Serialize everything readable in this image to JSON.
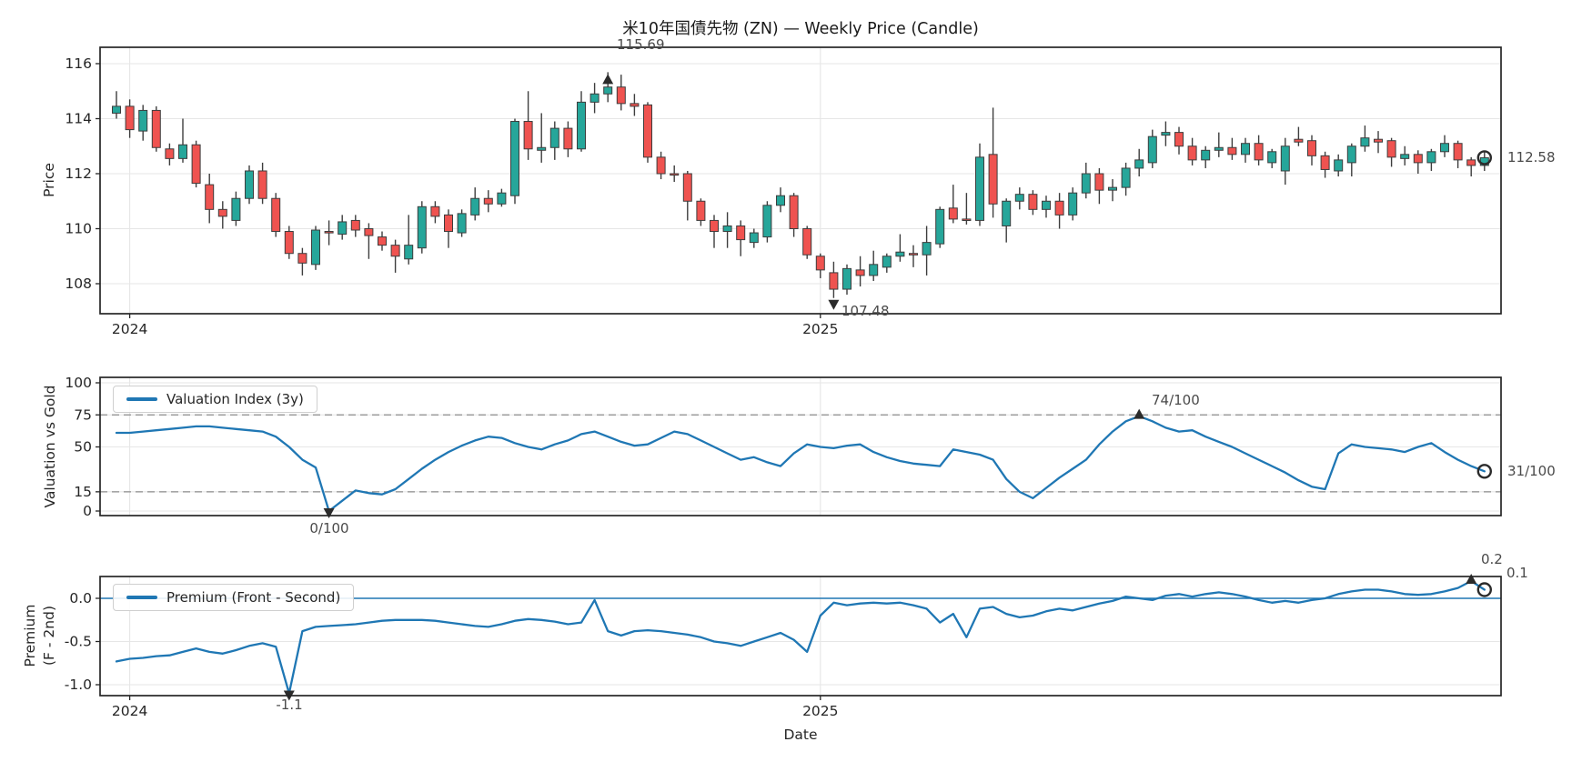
{
  "title": "米10年国債先物 (ZN) — Weekly Price (Candle)",
  "xlabel": "Date",
  "xticks": [
    {
      "label": "2024",
      "index": 1
    },
    {
      "label": "2025",
      "index": 53
    }
  ],
  "colors": {
    "up": "#26a69a",
    "down": "#ef5350",
    "candle_edge": "#3d3d3d",
    "line": "#1f77b4",
    "zero_line": "#1f77b4",
    "dashed": "#8c8c8c",
    "grid": "#e6e6e6",
    "spine": "#262626",
    "tick_text": "#262626",
    "annotation_text": "#4a4a4a",
    "marker": "#2b2b2b"
  },
  "chart_data": [
    {
      "type": "candlestick",
      "title": "米10年国債先物 (ZN) — Weekly Price (Candle)",
      "ylabel": "Price",
      "x_unit": "week",
      "xlabel_ticks": [
        "2024",
        "2025"
      ],
      "ylim": [
        106.3,
        116.6
      ],
      "yticks": [
        {
          "label": "108",
          "value": 108
        },
        {
          "label": "110",
          "value": 110
        },
        {
          "label": "112",
          "value": 112
        },
        {
          "label": "114",
          "value": 114
        },
        {
          "label": "116",
          "value": 116
        }
      ],
      "annotations": {
        "high": {
          "label": "115.69",
          "index": 37,
          "value": 115.69,
          "marker": "triangle-up"
        },
        "low": {
          "label": "107.48",
          "index": 54,
          "value": 107.48,
          "marker": "triangle-down"
        },
        "last": {
          "label": "112.58",
          "index": 103,
          "value": 112.58,
          "marker": "circle"
        }
      },
      "ohlc": [
        [
          114.2,
          115.0,
          114.0,
          114.45
        ],
        [
          114.45,
          114.7,
          113.3,
          113.6
        ],
        [
          113.55,
          114.5,
          113.2,
          114.3
        ],
        [
          114.3,
          114.45,
          112.8,
          112.95
        ],
        [
          112.9,
          113.1,
          112.3,
          112.55
        ],
        [
          112.55,
          114.0,
          112.4,
          113.05
        ],
        [
          113.05,
          113.2,
          111.5,
          111.65
        ],
        [
          111.6,
          112.0,
          110.2,
          110.7
        ],
        [
          110.7,
          111.0,
          110.0,
          110.45
        ],
        [
          110.3,
          111.35,
          110.1,
          111.1
        ],
        [
          111.1,
          112.3,
          110.9,
          112.1
        ],
        [
          112.1,
          112.4,
          110.9,
          111.1
        ],
        [
          111.1,
          111.3,
          109.7,
          109.9
        ],
        [
          109.9,
          110.1,
          108.9,
          109.1
        ],
        [
          109.1,
          109.3,
          108.3,
          108.75
        ],
        [
          108.7,
          110.1,
          108.5,
          109.95
        ],
        [
          109.9,
          110.3,
          109.4,
          109.85
        ],
        [
          109.8,
          110.5,
          109.6,
          110.25
        ],
        [
          110.3,
          110.5,
          109.7,
          109.95
        ],
        [
          110.0,
          110.2,
          108.9,
          109.75
        ],
        [
          109.7,
          109.9,
          109.2,
          109.4
        ],
        [
          109.4,
          109.6,
          108.4,
          109.0
        ],
        [
          108.9,
          110.5,
          108.7,
          109.4
        ],
        [
          109.3,
          111.0,
          109.1,
          110.8
        ],
        [
          110.8,
          111.0,
          110.2,
          110.45
        ],
        [
          110.5,
          110.7,
          109.3,
          109.9
        ],
        [
          109.85,
          110.7,
          109.7,
          110.55
        ],
        [
          110.5,
          111.5,
          110.3,
          111.1
        ],
        [
          111.1,
          111.4,
          110.6,
          110.9
        ],
        [
          110.9,
          111.45,
          110.8,
          111.3
        ],
        [
          111.2,
          114.0,
          110.9,
          113.9
        ],
        [
          113.9,
          115.0,
          112.5,
          112.9
        ],
        [
          112.85,
          114.2,
          112.4,
          112.95
        ],
        [
          112.95,
          113.9,
          112.5,
          113.65
        ],
        [
          113.65,
          113.9,
          112.6,
          112.9
        ],
        [
          112.9,
          115.0,
          112.8,
          114.6
        ],
        [
          114.6,
          115.3,
          114.2,
          114.9
        ],
        [
          114.9,
          115.69,
          114.6,
          115.15
        ],
        [
          115.15,
          115.6,
          114.3,
          114.55
        ],
        [
          114.55,
          114.9,
          114.1,
          114.45
        ],
        [
          114.5,
          114.6,
          112.4,
          112.6
        ],
        [
          112.6,
          112.8,
          111.8,
          112.0
        ],
        [
          112.0,
          112.3,
          111.7,
          111.95
        ],
        [
          112.0,
          112.1,
          110.3,
          111.0
        ],
        [
          111.0,
          111.1,
          110.1,
          110.3
        ],
        [
          110.3,
          110.5,
          109.3,
          109.9
        ],
        [
          109.9,
          110.6,
          109.3,
          110.1
        ],
        [
          110.1,
          110.3,
          109.0,
          109.6
        ],
        [
          109.5,
          110.0,
          109.3,
          109.85
        ],
        [
          109.7,
          111.0,
          109.5,
          110.85
        ],
        [
          110.85,
          111.5,
          110.6,
          111.2
        ],
        [
          111.2,
          111.3,
          109.7,
          110.0
        ],
        [
          110.0,
          110.1,
          108.9,
          109.05
        ],
        [
          109.0,
          109.1,
          108.2,
          108.5
        ],
        [
          108.4,
          108.8,
          107.48,
          107.8
        ],
        [
          107.8,
          108.7,
          107.6,
          108.55
        ],
        [
          108.5,
          109.0,
          107.9,
          108.3
        ],
        [
          108.3,
          109.2,
          108.1,
          108.7
        ],
        [
          108.6,
          109.1,
          108.4,
          109.0
        ],
        [
          109.0,
          109.8,
          108.8,
          109.15
        ],
        [
          109.1,
          109.4,
          108.6,
          109.05
        ],
        [
          109.05,
          110.1,
          108.3,
          109.5
        ],
        [
          109.45,
          110.8,
          109.3,
          110.7
        ],
        [
          110.75,
          111.6,
          110.2,
          110.35
        ],
        [
          110.35,
          111.3,
          110.15,
          110.3
        ],
        [
          110.3,
          113.1,
          110.1,
          112.6
        ],
        [
          112.7,
          114.4,
          110.4,
          110.9
        ],
        [
          110.1,
          111.1,
          109.5,
          111.0
        ],
        [
          111.0,
          111.5,
          110.7,
          111.25
        ],
        [
          111.25,
          111.4,
          110.5,
          110.7
        ],
        [
          110.7,
          111.2,
          110.4,
          111.0
        ],
        [
          111.0,
          111.3,
          110.0,
          110.5
        ],
        [
          110.5,
          111.5,
          110.3,
          111.3
        ],
        [
          111.3,
          112.4,
          111.1,
          112.0
        ],
        [
          112.0,
          112.2,
          110.9,
          111.4
        ],
        [
          111.4,
          111.8,
          111.0,
          111.5
        ],
        [
          111.5,
          112.4,
          111.2,
          112.2
        ],
        [
          112.2,
          112.9,
          111.9,
          112.5
        ],
        [
          112.4,
          113.6,
          112.2,
          113.35
        ],
        [
          113.4,
          113.9,
          113.0,
          113.5
        ],
        [
          113.5,
          113.7,
          112.7,
          113.0
        ],
        [
          113.0,
          113.3,
          112.3,
          112.5
        ],
        [
          112.5,
          113.0,
          112.2,
          112.85
        ],
        [
          112.85,
          113.5,
          112.6,
          112.95
        ],
        [
          112.95,
          113.3,
          112.5,
          112.7
        ],
        [
          112.7,
          113.3,
          112.4,
          113.1
        ],
        [
          113.1,
          113.4,
          112.3,
          112.5
        ],
        [
          112.4,
          112.9,
          112.2,
          112.8
        ],
        [
          112.1,
          113.3,
          111.6,
          113.0
        ],
        [
          113.25,
          113.7,
          113.0,
          113.15
        ],
        [
          113.2,
          113.4,
          112.3,
          112.65
        ],
        [
          112.65,
          112.8,
          111.85,
          112.15
        ],
        [
          112.1,
          112.7,
          111.9,
          112.5
        ],
        [
          112.4,
          113.1,
          111.9,
          113.0
        ],
        [
          113.0,
          113.75,
          112.8,
          113.3
        ],
        [
          113.25,
          113.55,
          112.75,
          113.15
        ],
        [
          113.2,
          113.3,
          112.25,
          112.6
        ],
        [
          112.55,
          113.0,
          112.3,
          112.7
        ],
        [
          112.7,
          112.85,
          112.0,
          112.4
        ],
        [
          112.4,
          112.9,
          112.1,
          112.8
        ],
        [
          112.8,
          113.4,
          112.6,
          113.1
        ],
        [
          113.1,
          113.2,
          112.2,
          112.5
        ],
        [
          112.5,
          112.6,
          111.9,
          112.3
        ],
        [
          112.3,
          112.8,
          112.1,
          112.58
        ]
      ]
    },
    {
      "type": "line",
      "name": "Valuation Index (3y)",
      "ylabel": "Valuation vs Gold",
      "ylim": [
        -5,
        105
      ],
      "yticks": [
        {
          "label": "0",
          "value": 0
        },
        {
          "label": "15",
          "value": 15
        },
        {
          "label": "50",
          "value": 50
        },
        {
          "label": "75",
          "value": 75
        },
        {
          "label": "100",
          "value": 100
        }
      ],
      "dashed_hlines": [
        15,
        75
      ],
      "legend_position": "upper-left",
      "annotations": {
        "max": {
          "label": "74/100",
          "index": 77,
          "value": 74,
          "marker": "triangle-up"
        },
        "min": {
          "label": "0/100",
          "index": 16,
          "value": 0,
          "marker": "triangle-down"
        },
        "last": {
          "label": "31/100",
          "index": 103,
          "value": 31,
          "marker": "circle"
        }
      },
      "values": [
        61,
        61,
        62,
        63,
        64,
        65,
        66,
        66,
        65,
        64,
        63,
        62,
        58,
        50,
        40,
        34,
        0,
        8,
        16,
        14,
        13,
        17,
        25,
        33,
        40,
        46,
        51,
        55,
        58,
        57,
        53,
        50,
        48,
        52,
        55,
        60,
        62,
        58,
        54,
        51,
        52,
        57,
        62,
        60,
        55,
        50,
        45,
        40,
        42,
        38,
        35,
        45,
        52,
        50,
        49,
        51,
        52,
        46,
        42,
        39,
        37,
        36,
        35,
        48,
        46,
        44,
        40,
        25,
        15,
        10,
        18,
        26,
        33,
        40,
        52,
        62,
        70,
        74,
        70,
        65,
        62,
        63,
        58,
        54,
        50,
        45,
        40,
        35,
        30,
        24,
        19,
        17,
        45,
        52,
        50,
        49,
        48,
        46,
        50,
        53,
        46,
        40,
        35,
        31
      ]
    },
    {
      "type": "line",
      "name": "Premium (Front - Second)",
      "ylabel_line1": "Premium",
      "ylabel_line2": "(F - 2nd)",
      "ylim": [
        -1.15,
        0.25
      ],
      "yticks": [
        {
          "label": "0.0",
          "value": 0
        },
        {
          "label": "-0.5",
          "value": -0.5
        },
        {
          "label": "-1.0",
          "value": -1.0
        }
      ],
      "hline": 0,
      "legend_position": "upper-left",
      "annotations": {
        "max": {
          "label": "0.2",
          "index": 102,
          "value": 0.2,
          "marker": "triangle-up"
        },
        "min": {
          "label": "-1.1",
          "index": 13,
          "value": -1.1,
          "marker": "triangle-down"
        },
        "last": {
          "label": "0.1",
          "index": 103,
          "value": 0.1,
          "marker": "circle"
        }
      },
      "values": [
        -0.73,
        -0.7,
        -0.69,
        -0.67,
        -0.66,
        -0.62,
        -0.58,
        -0.62,
        -0.64,
        -0.6,
        -0.55,
        -0.52,
        -0.56,
        -1.1,
        -0.38,
        -0.33,
        -0.32,
        -0.31,
        -0.3,
        -0.28,
        -0.26,
        -0.25,
        -0.25,
        -0.25,
        -0.26,
        -0.28,
        -0.3,
        -0.32,
        -0.33,
        -0.3,
        -0.26,
        -0.24,
        -0.25,
        -0.27,
        -0.3,
        -0.28,
        -0.02,
        -0.38,
        -0.43,
        -0.38,
        -0.37,
        -0.38,
        -0.4,
        -0.42,
        -0.45,
        -0.5,
        -0.52,
        -0.55,
        -0.5,
        -0.45,
        -0.4,
        -0.48,
        -0.62,
        -0.2,
        -0.05,
        -0.08,
        -0.06,
        -0.05,
        -0.06,
        -0.05,
        -0.08,
        -0.12,
        -0.28,
        -0.18,
        -0.45,
        -0.12,
        -0.1,
        -0.18,
        -0.22,
        -0.2,
        -0.15,
        -0.12,
        -0.14,
        -0.1,
        -0.06,
        -0.03,
        0.02,
        0.0,
        -0.02,
        0.03,
        0.05,
        0.02,
        0.05,
        0.07,
        0.05,
        0.02,
        -0.02,
        -0.05,
        -0.03,
        -0.05,
        -0.02,
        0.0,
        0.05,
        0.08,
        0.1,
        0.1,
        0.08,
        0.05,
        0.04,
        0.05,
        0.08,
        0.12,
        0.2,
        0.1
      ]
    }
  ]
}
